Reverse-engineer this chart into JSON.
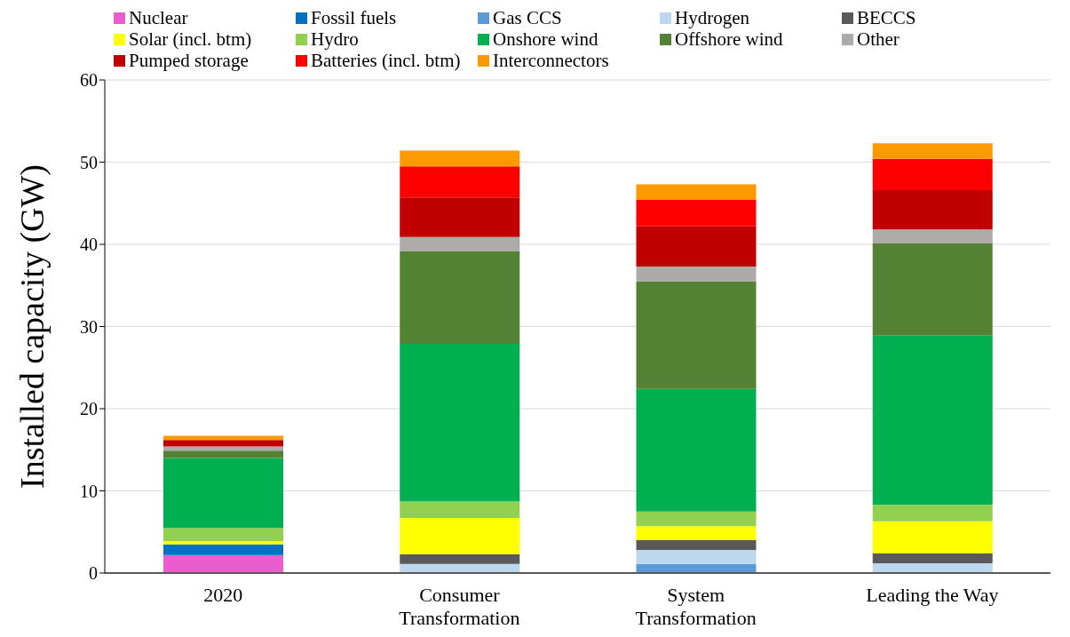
{
  "chart_data": {
    "type": "bar",
    "stacked": true,
    "ylabel": "Installed capacity (GW)",
    "categories": [
      "2020",
      "Consumer\nTransformation",
      "System\nTransformation",
      "Leading the Way"
    ],
    "ylim": [
      0,
      60
    ],
    "yticks": [
      0,
      10,
      20,
      30,
      40,
      50,
      60
    ],
    "grid": "y",
    "legend": "top",
    "series": [
      {
        "name": "Nuclear",
        "color": "#eb5ccf",
        "values": [
          2.2,
          0,
          0,
          0
        ]
      },
      {
        "name": "Fossil fuels",
        "color": "#0070c0",
        "values": [
          1.3,
          0,
          0,
          0
        ]
      },
      {
        "name": "Gas CCS",
        "color": "#5b9bd5",
        "values": [
          0,
          0,
          1.1,
          0
        ]
      },
      {
        "name": "Hydrogen",
        "color": "#bdd7ee",
        "values": [
          0,
          1.1,
          1.7,
          1.2
        ]
      },
      {
        "name": "BECCS",
        "color": "#595959",
        "values": [
          0,
          1.2,
          1.2,
          1.2
        ]
      },
      {
        "name": "Solar (incl. btm)",
        "color": "#ffff00",
        "values": [
          0.4,
          4.4,
          1.7,
          3.9
        ]
      },
      {
        "name": "Hydro",
        "color": "#92d050",
        "values": [
          1.6,
          2.0,
          1.8,
          2.0
        ]
      },
      {
        "name": "Onshore wind",
        "color": "#00b050",
        "values": [
          8.5,
          19.2,
          14.9,
          20.6
        ]
      },
      {
        "name": "Offshore wind",
        "color": "#548235",
        "values": [
          0.9,
          11.3,
          13.1,
          11.2
        ]
      },
      {
        "name": "Other",
        "color": "#aeaaaa",
        "values": [
          0.5,
          1.7,
          1.8,
          1.7
        ]
      },
      {
        "name": "Pumped storage",
        "color": "#c00000",
        "values": [
          0.8,
          4.8,
          4.9,
          4.8
        ]
      },
      {
        "name": "Batteries (incl. btm)",
        "color": "#ff0000",
        "values": [
          0,
          3.8,
          3.2,
          3.8
        ]
      },
      {
        "name": "Interconnectors",
        "color": "#ff9900",
        "values": [
          0.5,
          1.9,
          1.9,
          1.9
        ]
      }
    ]
  }
}
